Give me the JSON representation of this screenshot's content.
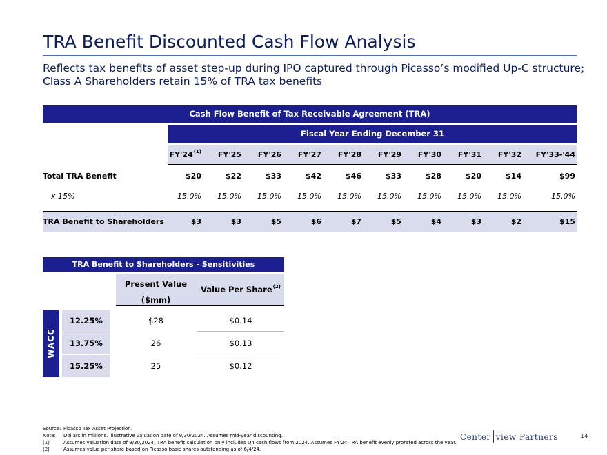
{
  "title": "TRA Benefit Discounted Cash Flow Analysis",
  "subtitle": "Reflects tax benefits of asset step-up during IPO captured through Picasso’s modified Up-C structure; Class A Shareholders retain 15% of TRA tax benefits",
  "main_table": {
    "band": "Cash Flow Benefit of Tax Receivable Agreement (TRA)",
    "subband": "Fiscal Year Ending December 31",
    "first_col_note": "(1)",
    "columns": [
      "FY'24",
      "FY'25",
      "FY'26",
      "FY'27",
      "FY'28",
      "FY'29",
      "FY'30",
      "FY'31",
      "FY'32",
      "FY'33-'44"
    ],
    "total_label": "Total TRA Benefit",
    "total_values": [
      "$20",
      "$22",
      "$33",
      "$42",
      "$46",
      "$33",
      "$28",
      "$20",
      "$14",
      "$99"
    ],
    "pct_label": "x 15%",
    "pct_values": [
      "15.0%",
      "15.0%",
      "15.0%",
      "15.0%",
      "15.0%",
      "15.0%",
      "15.0%",
      "15.0%",
      "15.0%",
      "15.0%"
    ],
    "sh_label": "TRA Benefit to Shareholders",
    "sh_values": [
      "$3",
      "$3",
      "$5",
      "$6",
      "$7",
      "$5",
      "$4",
      "$3",
      "$2",
      "$15"
    ]
  },
  "sensitivity": {
    "band": "TRA Benefit to Shareholders - Sensitivities",
    "pv_header_line1": "Present Value",
    "pv_header_line2": "($mm)",
    "vps_header": "Value Per Share",
    "vps_note": "(2)",
    "side_label": "WACC",
    "rows": [
      {
        "rate": "12.25%",
        "pv": "$28",
        "vps": "$0.14"
      },
      {
        "rate": "13.75%",
        "pv": "26",
        "vps": "$0.13"
      },
      {
        "rate": "15.25%",
        "pv": "25",
        "vps": "$0.12"
      }
    ]
  },
  "footnotes": [
    {
      "label": "Source:",
      "text": "Picasso Tax Asset Projection."
    },
    {
      "label": "Note:",
      "text": "Dollars in millions. Illustrative valuation date of 9/30/2024. Assumes mid-year discounting."
    },
    {
      "label": "(1)",
      "text": "Assumes valuation date of 9/30/2024; TRA benefit calculation only includes Q4 cash flows from 2024. Assumes FY'24 TRA benefit evenly prorated across the year."
    },
    {
      "label": "(2)",
      "text": "Assumes value per share based on Picasso basic shares outstanding as of 6/4/24."
    }
  ],
  "logo_left": "Center",
  "logo_right": "view Partners",
  "page_number": "14",
  "colors": {
    "navy": "#1b1f8f",
    "title": "#0b1d5e",
    "shade": "#d9dcec"
  }
}
